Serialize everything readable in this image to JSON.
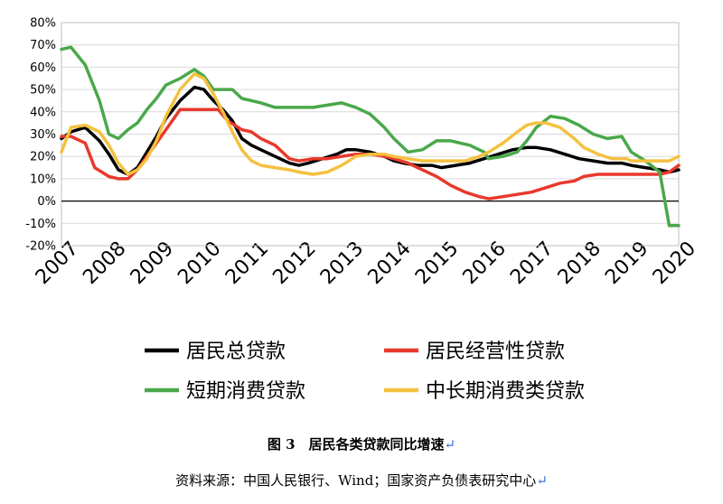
{
  "figure": {
    "caption": "图 3　居民各类贷款同比增速",
    "source": "资料来源：中国人民银行、Wind；国家资产负债表研究中心",
    "return_mark": "↵"
  },
  "chart_data": {
    "type": "line",
    "title": "",
    "xlabel": "",
    "ylabel": "",
    "x_labels": [
      "2007",
      "2008",
      "2009",
      "2010",
      "2011",
      "2012",
      "2013",
      "2014",
      "2015",
      "2016",
      "2017",
      "2018",
      "2019",
      "2020"
    ],
    "y_ticks": [
      "80%",
      "70%",
      "60%",
      "50%",
      "40%",
      "30%",
      "20%",
      "10%",
      "0%",
      "-10%",
      "-20%"
    ],
    "xlim": [
      2007.0,
      2020.0
    ],
    "ylim": [
      -20,
      80
    ],
    "grid": "horizontal",
    "legend_position": "bottom",
    "series": [
      {
        "name": "居民总贷款",
        "color": "#000000",
        "x": [
          2007.0,
          2007.2,
          2007.5,
          2007.8,
          2008.0,
          2008.2,
          2008.4,
          2008.6,
          2008.8,
          2009.0,
          2009.2,
          2009.5,
          2009.8,
          2010.0,
          2010.2,
          2010.4,
          2010.6,
          2010.8,
          2011.0,
          2011.2,
          2011.5,
          2011.8,
          2012.0,
          2012.2,
          2012.5,
          2012.8,
          2013.0,
          2013.2,
          2013.5,
          2013.8,
          2014.0,
          2014.2,
          2014.5,
          2014.8,
          2015.0,
          2015.3,
          2015.6,
          2015.9,
          2016.2,
          2016.5,
          2016.8,
          2017.0,
          2017.3,
          2017.6,
          2017.9,
          2018.2,
          2018.5,
          2018.8,
          2019.0,
          2019.3,
          2019.6,
          2019.8,
          2020.0
        ],
        "y": [
          28,
          31,
          33,
          27,
          21,
          14,
          12,
          15,
          22,
          29,
          37,
          45,
          51,
          50,
          45,
          41,
          36,
          28,
          25,
          23,
          20,
          17,
          16,
          17,
          19,
          21,
          23,
          23,
          22,
          20,
          18,
          17,
          16,
          16,
          15,
          16,
          17,
          19,
          21,
          23,
          24,
          24,
          23,
          21,
          19,
          18,
          17,
          17,
          16,
          15,
          14,
          13,
          14
        ]
      },
      {
        "name": "居民经营性贷款",
        "color": "#e8392c",
        "x": [
          2007.0,
          2007.2,
          2007.5,
          2007.7,
          2008.0,
          2008.2,
          2008.4,
          2008.6,
          2008.8,
          2009.0,
          2009.2,
          2009.5,
          2009.8,
          2010.0,
          2010.3,
          2010.5,
          2010.8,
          2011.0,
          2011.2,
          2011.5,
          2011.8,
          2012.0,
          2012.3,
          2012.6,
          2012.9,
          2013.2,
          2013.5,
          2013.8,
          2014.0,
          2014.3,
          2014.6,
          2014.9,
          2015.2,
          2015.5,
          2015.8,
          2016.0,
          2016.3,
          2016.6,
          2016.9,
          2017.2,
          2017.5,
          2017.8,
          2018.0,
          2018.3,
          2018.6,
          2018.9,
          2019.0,
          2019.3,
          2019.6,
          2019.8,
          2020.0
        ],
        "y": [
          29,
          29,
          26,
          15,
          11,
          10,
          10,
          14,
          20,
          26,
          32,
          41,
          41,
          41,
          41,
          36,
          32,
          31,
          28,
          25,
          19,
          18,
          19,
          19,
          20,
          21,
          21,
          20,
          19,
          17,
          14,
          11,
          7,
          4,
          2,
          1,
          2,
          3,
          4,
          6,
          8,
          9,
          11,
          12,
          12,
          12,
          12,
          12,
          12,
          13,
          16
        ]
      },
      {
        "name": "短期消费贷款",
        "color": "#4aa84a",
        "x": [
          2007.0,
          2007.2,
          2007.5,
          2007.8,
          2008.0,
          2008.2,
          2008.4,
          2008.6,
          2008.8,
          2009.0,
          2009.2,
          2009.5,
          2009.8,
          2010.0,
          2010.2,
          2010.4,
          2010.6,
          2010.8,
          2011.0,
          2011.2,
          2011.5,
          2011.8,
          2012.0,
          2012.3,
          2012.6,
          2012.9,
          2013.2,
          2013.5,
          2013.8,
          2014.0,
          2014.3,
          2014.6,
          2014.9,
          2015.2,
          2015.4,
          2015.6,
          2015.9,
          2016.0,
          2016.3,
          2016.6,
          2016.8,
          2017.0,
          2017.3,
          2017.6,
          2017.9,
          2018.2,
          2018.5,
          2018.8,
          2019.0,
          2019.3,
          2019.6,
          2019.8,
          2020.0
        ],
        "y": [
          68,
          69,
          61,
          45,
          30,
          28,
          32,
          35,
          41,
          46,
          52,
          55,
          59,
          56,
          50,
          50,
          50,
          46,
          45,
          44,
          42,
          42,
          42,
          42,
          43,
          44,
          42,
          39,
          33,
          28,
          22,
          23,
          27,
          27,
          26,
          25,
          22,
          19,
          20,
          22,
          27,
          33,
          38,
          37,
          34,
          30,
          28,
          29,
          22,
          18,
          13,
          -11,
          -11
        ]
      },
      {
        "name": "中长期消费类贷款",
        "color": "#f4c140",
        "x": [
          2007.0,
          2007.2,
          2007.5,
          2007.8,
          2008.0,
          2008.2,
          2008.4,
          2008.6,
          2008.8,
          2009.0,
          2009.2,
          2009.5,
          2009.8,
          2010.0,
          2010.2,
          2010.4,
          2010.6,
          2010.8,
          2011.0,
          2011.2,
          2011.5,
          2011.8,
          2012.0,
          2012.3,
          2012.6,
          2012.9,
          2013.2,
          2013.5,
          2013.8,
          2014.0,
          2014.3,
          2014.6,
          2014.9,
          2015.2,
          2015.5,
          2015.8,
          2016.0,
          2016.3,
          2016.6,
          2016.8,
          2017.0,
          2017.2,
          2017.5,
          2017.8,
          2018.0,
          2018.3,
          2018.6,
          2018.9,
          2019.0,
          2019.3,
          2019.6,
          2019.8,
          2020.0
        ],
        "y": [
          22,
          33,
          34,
          31,
          25,
          17,
          12,
          14,
          19,
          27,
          38,
          50,
          57,
          55,
          48,
          40,
          31,
          23,
          18,
          16,
          15,
          14,
          13,
          12,
          13,
          16,
          20,
          21,
          21,
          20,
          19,
          18,
          18,
          18,
          18,
          20,
          22,
          26,
          31,
          34,
          35,
          35,
          33,
          28,
          24,
          21,
          19,
          19,
          18,
          18,
          18,
          18,
          20
        ]
      }
    ]
  }
}
